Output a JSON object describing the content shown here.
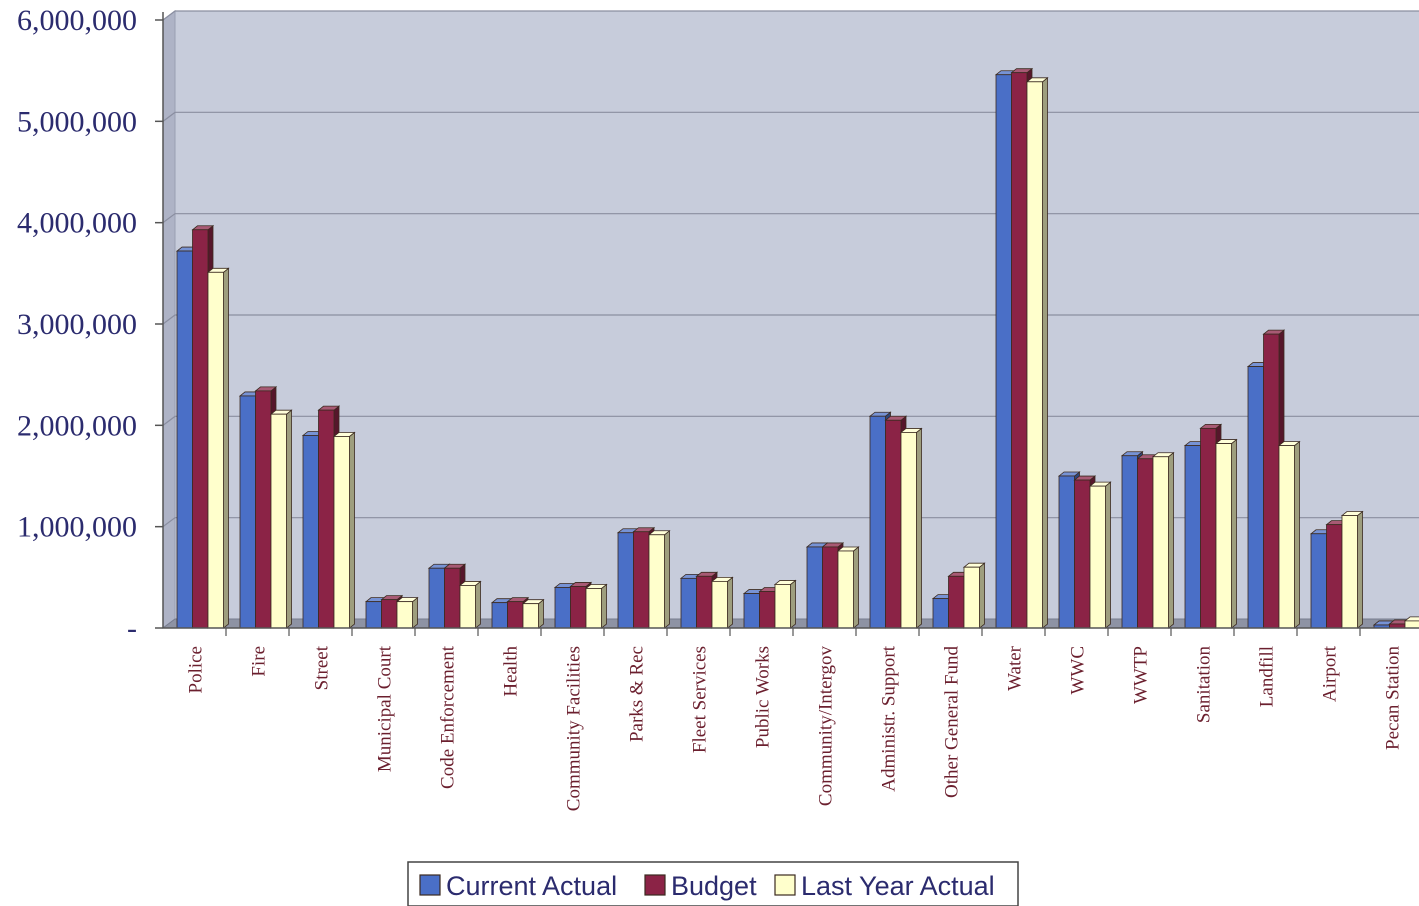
{
  "chart_data": {
    "type": "bar",
    "categories": [
      "Police",
      "Fire",
      "Street",
      "Municipal Court",
      "Code Enforcement",
      "Health",
      "Community Facilities",
      "Parks & Rec",
      "Fleet Services",
      "Public Works",
      "Community/Intergov",
      "Administr. Support",
      "Other General Fund",
      "Water",
      "WWC",
      "WWTP",
      "Sanitation",
      "Landfill",
      "Airport",
      "Pecan Station"
    ],
    "series": [
      {
        "name": "Current Actual",
        "color": "#4a6fc7",
        "values": [
          3720000,
          2290000,
          1900000,
          260000,
          590000,
          250000,
          400000,
          940000,
          490000,
          340000,
          800000,
          2090000,
          290000,
          5460000,
          1500000,
          1700000,
          1800000,
          2580000,
          930000,
          30000
        ]
      },
      {
        "name": "Budget",
        "color": "#8b2346",
        "values": [
          3930000,
          2340000,
          2150000,
          280000,
          590000,
          260000,
          410000,
          950000,
          510000,
          360000,
          800000,
          2050000,
          510000,
          5480000,
          1460000,
          1670000,
          1970000,
          2900000,
          1020000,
          40000
        ]
      },
      {
        "name": "Last Year Actual",
        "color": "#ffffcc",
        "values": [
          3510000,
          2110000,
          1890000,
          260000,
          420000,
          240000,
          390000,
          920000,
          460000,
          430000,
          760000,
          1930000,
          600000,
          5390000,
          1400000,
          1690000,
          1820000,
          1800000,
          1110000,
          70000
        ]
      }
    ],
    "y_ticks": [
      "-",
      "1,000,000",
      "2,000,000",
      "3,000,000",
      "4,000,000",
      "5,000,000",
      "6,000,000"
    ],
    "ylim": [
      0,
      6000000
    ],
    "grid": true,
    "legend_position": "bottom",
    "plot_background": "#c7ccdb",
    "title": "",
    "xlabel": "",
    "ylabel": ""
  }
}
